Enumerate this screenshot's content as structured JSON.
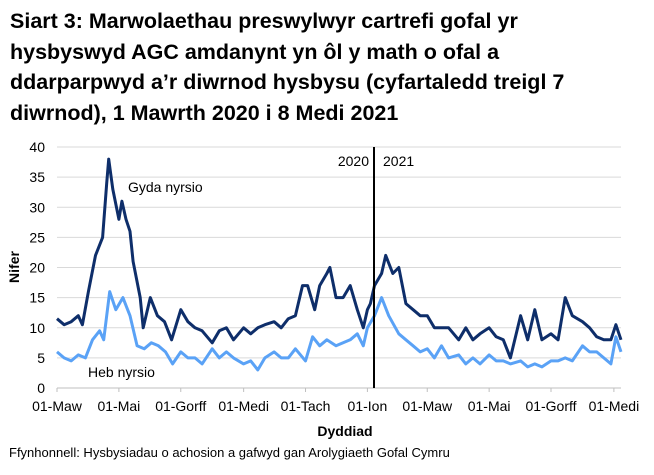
{
  "title_lines": [
    "Siart 3: Marwolaethau preswylwyr cartrefi gofal yr",
    "hysbyswyd AGC amdanynt yn ôl y math o ofal a",
    "ddarparpwyd a’r diwrnod hysbysu (cyfartaledd treigl 7",
    "diwrnod), 1 Mawrth 2020 i 8 Medi 2021"
  ],
  "source": "Ffynhonnell: Hysbysiadau o achosion a gafwyd gan Arolygiaeth Gofal Cymru",
  "chart_data": {
    "type": "line",
    "title": "Siart 3: Marwolaethau preswylwyr cartrefi gofal yr hysbyswyd AGC amdanynt yn ôl y math o ofal a ddarparpwyd a’r diwrnod hysbysu (cyfartaledd treigl 7 diwrnod), 1 Mawrth 2020 i 8 Medi 2021",
    "xlabel": "Dyddiad",
    "ylabel": "Nifer",
    "xlim": [
      "2020-03-01",
      "2021-09-08"
    ],
    "ylim": [
      0,
      40
    ],
    "yticks": [
      0,
      5,
      10,
      15,
      20,
      25,
      30,
      35,
      40
    ],
    "xticks": [
      {
        "date": "2020-03-01",
        "label": "01-Maw"
      },
      {
        "date": "2020-05-01",
        "label": "01-Mai"
      },
      {
        "date": "2020-07-01",
        "label": "01-Gorff"
      },
      {
        "date": "2020-09-01",
        "label": "01-Medi"
      },
      {
        "date": "2020-11-01",
        "label": "01-Tach"
      },
      {
        "date": "2021-01-01",
        "label": "01-Ion"
      },
      {
        "date": "2021-03-01",
        "label": "01-Maw"
      },
      {
        "date": "2021-05-01",
        "label": "01-Mai"
      },
      {
        "date": "2021-07-01",
        "label": "01-Gorff"
      },
      {
        "date": "2021-09-01",
        "label": "01-Medi"
      }
    ],
    "grid": true,
    "year_marker": {
      "left_label": "2020",
      "right_label": "2021"
    },
    "series": [
      {
        "name": "Gyda nyrsio",
        "color": "#0e2e6a",
        "points": [
          [
            "2020-03-01",
            11.5
          ],
          [
            "2020-03-08",
            10.5
          ],
          [
            "2020-03-15",
            11
          ],
          [
            "2020-03-22",
            12
          ],
          [
            "2020-03-26",
            10.5
          ],
          [
            "2020-04-01",
            16
          ],
          [
            "2020-04-08",
            22
          ],
          [
            "2020-04-15",
            25
          ],
          [
            "2020-04-19",
            34
          ],
          [
            "2020-04-21",
            38
          ],
          [
            "2020-04-25",
            33
          ],
          [
            "2020-05-01",
            28
          ],
          [
            "2020-05-04",
            31
          ],
          [
            "2020-05-08",
            28
          ],
          [
            "2020-05-12",
            26
          ],
          [
            "2020-05-15",
            21
          ],
          [
            "2020-05-22",
            15
          ],
          [
            "2020-05-25",
            10
          ],
          [
            "2020-06-01",
            15
          ],
          [
            "2020-06-08",
            12
          ],
          [
            "2020-06-15",
            11
          ],
          [
            "2020-06-22",
            8
          ],
          [
            "2020-07-01",
            13
          ],
          [
            "2020-07-08",
            11
          ],
          [
            "2020-07-15",
            10
          ],
          [
            "2020-07-22",
            9.5
          ],
          [
            "2020-08-01",
            7.5
          ],
          [
            "2020-08-08",
            9.5
          ],
          [
            "2020-08-15",
            10
          ],
          [
            "2020-08-22",
            8
          ],
          [
            "2020-09-01",
            10
          ],
          [
            "2020-09-08",
            9
          ],
          [
            "2020-09-15",
            10
          ],
          [
            "2020-09-22",
            10.5
          ],
          [
            "2020-10-01",
            11
          ],
          [
            "2020-10-08",
            10
          ],
          [
            "2020-10-15",
            11.5
          ],
          [
            "2020-10-22",
            12
          ],
          [
            "2020-10-29",
            17
          ],
          [
            "2020-11-03",
            17
          ],
          [
            "2020-11-10",
            13
          ],
          [
            "2020-11-15",
            17
          ],
          [
            "2020-11-22",
            19
          ],
          [
            "2020-11-25",
            20
          ],
          [
            "2020-12-01",
            15
          ],
          [
            "2020-12-08",
            15
          ],
          [
            "2020-12-15",
            17
          ],
          [
            "2020-12-22",
            13
          ],
          [
            "2020-12-28",
            10
          ],
          [
            "2021-01-01",
            13
          ],
          [
            "2021-01-04",
            14
          ],
          [
            "2021-01-08",
            17
          ],
          [
            "2021-01-15",
            19
          ],
          [
            "2021-01-19",
            22
          ],
          [
            "2021-01-26",
            19
          ],
          [
            "2021-02-01",
            20
          ],
          [
            "2021-02-08",
            14
          ],
          [
            "2021-02-15",
            13
          ],
          [
            "2021-02-22",
            12
          ],
          [
            "2021-03-01",
            12
          ],
          [
            "2021-03-08",
            10
          ],
          [
            "2021-03-15",
            10
          ],
          [
            "2021-03-22",
            10
          ],
          [
            "2021-04-01",
            8
          ],
          [
            "2021-04-08",
            10
          ],
          [
            "2021-04-15",
            8
          ],
          [
            "2021-04-22",
            9
          ],
          [
            "2021-05-01",
            10
          ],
          [
            "2021-05-08",
            8.5
          ],
          [
            "2021-05-15",
            8
          ],
          [
            "2021-05-22",
            5
          ],
          [
            "2021-06-01",
            12
          ],
          [
            "2021-06-08",
            8
          ],
          [
            "2021-06-15",
            13
          ],
          [
            "2021-06-22",
            8
          ],
          [
            "2021-07-01",
            9
          ],
          [
            "2021-07-08",
            8
          ],
          [
            "2021-07-15",
            15
          ],
          [
            "2021-07-22",
            12
          ],
          [
            "2021-08-01",
            11
          ],
          [
            "2021-08-08",
            10
          ],
          [
            "2021-08-15",
            8.5
          ],
          [
            "2021-08-22",
            8
          ],
          [
            "2021-08-29",
            8
          ],
          [
            "2021-09-03",
            10.5
          ],
          [
            "2021-09-08",
            8
          ]
        ]
      },
      {
        "name": "Heb nyrsio",
        "color": "#5aa2f6",
        "points": [
          [
            "2020-03-01",
            6
          ],
          [
            "2020-03-08",
            5
          ],
          [
            "2020-03-15",
            4.5
          ],
          [
            "2020-03-22",
            5.5
          ],
          [
            "2020-03-29",
            5
          ],
          [
            "2020-04-05",
            8
          ],
          [
            "2020-04-12",
            9.5
          ],
          [
            "2020-04-16",
            8
          ],
          [
            "2020-04-22",
            16
          ],
          [
            "2020-04-28",
            13
          ],
          [
            "2020-05-05",
            15
          ],
          [
            "2020-05-12",
            12
          ],
          [
            "2020-05-19",
            7
          ],
          [
            "2020-05-26",
            6.5
          ],
          [
            "2020-06-02",
            7.5
          ],
          [
            "2020-06-09",
            7
          ],
          [
            "2020-06-16",
            6
          ],
          [
            "2020-06-23",
            4
          ],
          [
            "2020-07-01",
            6
          ],
          [
            "2020-07-08",
            5
          ],
          [
            "2020-07-15",
            5
          ],
          [
            "2020-07-22",
            4
          ],
          [
            "2020-08-01",
            6.5
          ],
          [
            "2020-08-08",
            5
          ],
          [
            "2020-08-15",
            6
          ],
          [
            "2020-08-22",
            5
          ],
          [
            "2020-09-01",
            4
          ],
          [
            "2020-09-08",
            4.5
          ],
          [
            "2020-09-15",
            3
          ],
          [
            "2020-09-22",
            5
          ],
          [
            "2020-10-01",
            6
          ],
          [
            "2020-10-08",
            5
          ],
          [
            "2020-10-15",
            5
          ],
          [
            "2020-10-22",
            6.5
          ],
          [
            "2020-11-01",
            4.5
          ],
          [
            "2020-11-08",
            8.5
          ],
          [
            "2020-11-15",
            7
          ],
          [
            "2020-11-22",
            8
          ],
          [
            "2020-12-01",
            7
          ],
          [
            "2020-12-08",
            7.5
          ],
          [
            "2020-12-15",
            8
          ],
          [
            "2020-12-22",
            9
          ],
          [
            "2020-12-28",
            7
          ],
          [
            "2021-01-01",
            10
          ],
          [
            "2021-01-08",
            12
          ],
          [
            "2021-01-15",
            15
          ],
          [
            "2021-01-22",
            12
          ],
          [
            "2021-02-01",
            9
          ],
          [
            "2021-02-08",
            8
          ],
          [
            "2021-02-15",
            7
          ],
          [
            "2021-02-22",
            6
          ],
          [
            "2021-03-01",
            6.5
          ],
          [
            "2021-03-08",
            5
          ],
          [
            "2021-03-15",
            7
          ],
          [
            "2021-03-22",
            5
          ],
          [
            "2021-04-01",
            5.5
          ],
          [
            "2021-04-08",
            4
          ],
          [
            "2021-04-15",
            5
          ],
          [
            "2021-04-22",
            4
          ],
          [
            "2021-05-01",
            5.5
          ],
          [
            "2021-05-08",
            4.5
          ],
          [
            "2021-05-15",
            4.5
          ],
          [
            "2021-05-22",
            4
          ],
          [
            "2021-06-01",
            4.5
          ],
          [
            "2021-06-08",
            3.5
          ],
          [
            "2021-06-15",
            4
          ],
          [
            "2021-06-22",
            3.5
          ],
          [
            "2021-07-01",
            4.5
          ],
          [
            "2021-07-08",
            4.5
          ],
          [
            "2021-07-15",
            5
          ],
          [
            "2021-07-22",
            4.5
          ],
          [
            "2021-08-01",
            7
          ],
          [
            "2021-08-08",
            6
          ],
          [
            "2021-08-15",
            6
          ],
          [
            "2021-08-22",
            5
          ],
          [
            "2021-08-29",
            4
          ],
          [
            "2021-09-03",
            8.5
          ],
          [
            "2021-09-08",
            6
          ]
        ]
      }
    ]
  }
}
